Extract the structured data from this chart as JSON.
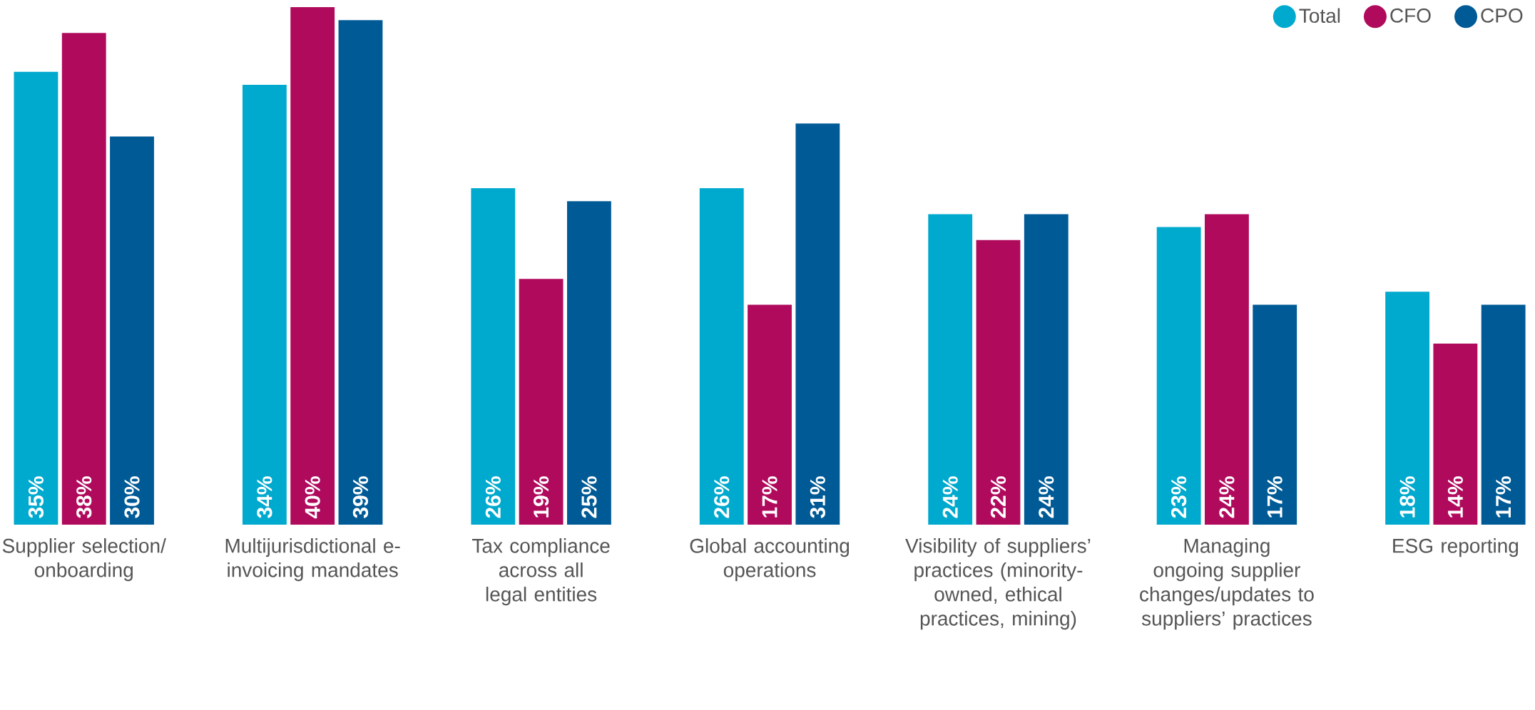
{
  "chart_data": {
    "type": "bar",
    "categories": [
      "Supplier selection/ onboarding",
      "Multijurisdictional e-invoicing mandates",
      "Tax compliance across all legal entities",
      "Global accounting operations",
      "Visibility of suppliers’ practices (minority-owned, ethical practices, mining)",
      "Managing ongoing supplier changes/updates to suppliers’ practices",
      "ESG reporting"
    ],
    "series": [
      {
        "name": "Total",
        "color": "#00a9ce",
        "values": [
          35,
          34,
          26,
          26,
          24,
          23,
          18
        ],
        "value_labels": [
          "35%",
          "34%",
          "26%",
          "26%",
          "24%",
          "23%",
          "18%"
        ]
      },
      {
        "name": "CFO",
        "color": "#b00a5d",
        "values": [
          38,
          40,
          19,
          17,
          22,
          24,
          14
        ],
        "value_labels": [
          "38%",
          "40%",
          "19%",
          "17%",
          "22%",
          "24%",
          "14%"
        ]
      },
      {
        "name": "CPO",
        "color": "#005a96",
        "values": [
          30,
          39,
          25,
          31,
          24,
          17,
          17
        ],
        "value_labels": [
          "30%",
          "39%",
          "25%",
          "31%",
          "24%",
          "17%",
          "17%"
        ]
      }
    ],
    "ylim": [
      0,
      40
    ],
    "legend": "top right"
  }
}
